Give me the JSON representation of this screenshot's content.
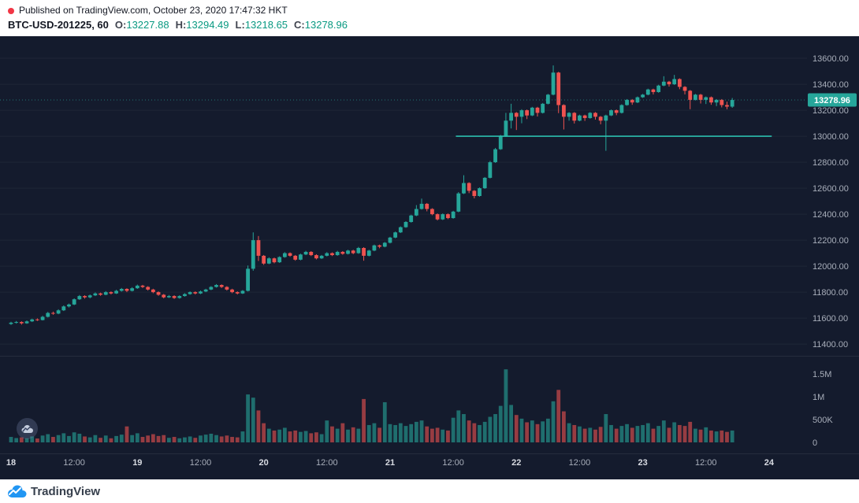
{
  "header": {
    "published_line": "Published on TradingView.com, October 23, 2020 17:47:32 HKT",
    "symbol_title": "BTC-USD-201225, 60",
    "ohlc": {
      "o_label": "O:",
      "o": "13227.88",
      "h_label": "H:",
      "h": "13294.49",
      "l_label": "L:",
      "l": "13218.65",
      "c_label": "C:",
      "c": "13278.96"
    }
  },
  "footer": {
    "brand": "TradingView"
  },
  "colors": {
    "bg": "#141b2d",
    "up": "#26a69a",
    "down": "#ef5350",
    "vol_up": "rgba(38,166,154,0.60)",
    "vol_down": "rgba(239,83,80,0.60)",
    "trendline": "#2cbfae",
    "price_label_bg": "#26a69a",
    "axis_text": "#a8aeba",
    "header_value_green": "#089981",
    "publish_dot_red": "#f23645"
  },
  "chart_data": {
    "type": "candlestick",
    "symbol": "BTC-USD-201225",
    "interval_minutes": 60,
    "grid": "subtle-horizontal",
    "legend_position": "none",
    "price_axis": {
      "min": 11310,
      "max": 13770,
      "last_price": 13278.96,
      "last_price_label": "13278.96",
      "ticks": [
        [
          13600,
          "13600.00"
        ],
        [
          13400,
          "13400.00"
        ],
        [
          13200,
          "13200.00"
        ],
        [
          13000,
          "13000.00"
        ],
        [
          12800,
          "12800.00"
        ],
        [
          12600,
          "12600.00"
        ],
        [
          12400,
          "12400.00"
        ],
        [
          12200,
          "12200.00"
        ],
        [
          12000,
          "12000.00"
        ],
        [
          11800,
          "11800.00"
        ],
        [
          11600,
          "11600.00"
        ],
        [
          11400,
          "11400.00"
        ]
      ]
    },
    "volume_axis": {
      "ticks": [
        [
          1500,
          "1.5M"
        ],
        [
          1000,
          "1M"
        ],
        [
          500,
          "500K"
        ],
        [
          0,
          "0"
        ]
      ],
      "units": "thousands"
    },
    "time_ticks": [
      [
        0,
        "18",
        true
      ],
      [
        12,
        "12:00",
        false
      ],
      [
        24,
        "19",
        true
      ],
      [
        36,
        "12:00",
        false
      ],
      [
        48,
        "20",
        true
      ],
      [
        60,
        "12:00",
        false
      ],
      [
        72,
        "21",
        true
      ],
      [
        84,
        "12:00",
        false
      ],
      [
        96,
        "22",
        true
      ],
      [
        108,
        "12:00",
        false
      ],
      [
        120,
        "23",
        true
      ],
      [
        132,
        "12:00",
        false
      ],
      [
        144,
        "24",
        true
      ]
    ],
    "trendline": {
      "price": 13000,
      "from_index": 84.5,
      "to_index": 144.5
    },
    "candles_format": [
      "open",
      "high",
      "low",
      "close",
      "volume_k"
    ],
    "candles": [
      [
        11555,
        11572,
        11548,
        11565,
        120
      ],
      [
        11565,
        11578,
        11558,
        11570,
        95
      ],
      [
        11570,
        11576,
        11550,
        11560,
        110
      ],
      [
        11560,
        11582,
        11556,
        11575,
        90
      ],
      [
        11575,
        11596,
        11570,
        11590,
        130
      ],
      [
        11590,
        11598,
        11578,
        11585,
        85
      ],
      [
        11585,
        11618,
        11582,
        11610,
        150
      ],
      [
        11610,
        11648,
        11605,
        11640,
        180
      ],
      [
        11640,
        11650,
        11626,
        11635,
        120
      ],
      [
        11635,
        11668,
        11630,
        11660,
        160
      ],
      [
        11660,
        11698,
        11655,
        11690,
        200
      ],
      [
        11690,
        11712,
        11682,
        11705,
        140
      ],
      [
        11705,
        11752,
        11700,
        11745,
        220
      ],
      [
        11745,
        11778,
        11740,
        11770,
        190
      ],
      [
        11770,
        11776,
        11750,
        11760,
        130
      ],
      [
        11760,
        11782,
        11752,
        11775,
        110
      ],
      [
        11775,
        11798,
        11770,
        11790,
        160
      ],
      [
        11790,
        11796,
        11772,
        11780,
        100
      ],
      [
        11780,
        11808,
        11776,
        11800,
        150
      ],
      [
        11800,
        11806,
        11782,
        11790,
        90
      ],
      [
        11790,
        11818,
        11786,
        11810,
        140
      ],
      [
        11810,
        11832,
        11804,
        11825,
        170
      ],
      [
        11825,
        11830,
        11800,
        11810,
        350
      ],
      [
        11810,
        11838,
        11805,
        11830,
        160
      ],
      [
        11830,
        11858,
        11825,
        11850,
        200
      ],
      [
        11850,
        11856,
        11832,
        11840,
        120
      ],
      [
        11840,
        11846,
        11812,
        11820,
        150
      ],
      [
        11820,
        11826,
        11792,
        11800,
        180
      ],
      [
        11800,
        11806,
        11772,
        11780,
        140
      ],
      [
        11780,
        11786,
        11752,
        11760,
        160
      ],
      [
        11760,
        11778,
        11755,
        11770,
        100
      ],
      [
        11770,
        11776,
        11748,
        11755,
        120
      ],
      [
        11755,
        11776,
        11750,
        11770,
        90
      ],
      [
        11770,
        11792,
        11765,
        11785,
        110
      ],
      [
        11785,
        11806,
        11780,
        11800,
        130
      ],
      [
        11800,
        11806,
        11782,
        11790,
        100
      ],
      [
        11790,
        11812,
        11785,
        11805,
        150
      ],
      [
        11805,
        11826,
        11800,
        11820,
        170
      ],
      [
        11820,
        11846,
        11815,
        11840,
        190
      ],
      [
        11840,
        11862,
        11835,
        11855,
        160
      ],
      [
        11855,
        11860,
        11832,
        11840,
        130
      ],
      [
        11840,
        11846,
        11812,
        11820,
        150
      ],
      [
        11820,
        11826,
        11792,
        11800,
        120
      ],
      [
        11800,
        11806,
        11782,
        11790,
        110
      ],
      [
        11790,
        11816,
        11786,
        11810,
        240
      ],
      [
        11810,
        12005,
        11805,
        11980,
        1050
      ],
      [
        11980,
        12260,
        11965,
        12200,
        980
      ],
      [
        12200,
        12232,
        12040,
        12080,
        700
      ],
      [
        12080,
        12086,
        12010,
        12020,
        420
      ],
      [
        12020,
        12068,
        12015,
        12060,
        300
      ],
      [
        12060,
        12066,
        12022,
        12030,
        260
      ],
      [
        12030,
        12076,
        12025,
        12070,
        280
      ],
      [
        12070,
        12108,
        12065,
        12100,
        320
      ],
      [
        12100,
        12106,
        12072,
        12080,
        240
      ],
      [
        12080,
        12086,
        12042,
        12050,
        260
      ],
      [
        12050,
        12096,
        12045,
        12090,
        230
      ],
      [
        12090,
        12118,
        12085,
        12110,
        250
      ],
      [
        12110,
        12116,
        12078,
        12085,
        200
      ],
      [
        12085,
        12092,
        12052,
        12060,
        220
      ],
      [
        12060,
        12086,
        12055,
        12080,
        180
      ],
      [
        12080,
        12108,
        12075,
        12100,
        480
      ],
      [
        12100,
        12106,
        12078,
        12085,
        350
      ],
      [
        12085,
        12118,
        12080,
        12110,
        300
      ],
      [
        12110,
        12116,
        12088,
        12095,
        420
      ],
      [
        12095,
        12126,
        12090,
        12120,
        280
      ],
      [
        12120,
        12126,
        12092,
        12100,
        330
      ],
      [
        12100,
        12148,
        12095,
        12140,
        300
      ],
      [
        12140,
        12146,
        12042,
        12080,
        950
      ],
      [
        12080,
        12126,
        12075,
        12120,
        380
      ],
      [
        12120,
        12166,
        12115,
        12160,
        420
      ],
      [
        12160,
        12166,
        12138,
        12150,
        320
      ],
      [
        12150,
        12186,
        12145,
        12180,
        880
      ],
      [
        12180,
        12226,
        12175,
        12220,
        400
      ],
      [
        12220,
        12266,
        12215,
        12260,
        380
      ],
      [
        12260,
        12306,
        12255,
        12300,
        420
      ],
      [
        12300,
        12346,
        12295,
        12340,
        360
      ],
      [
        12340,
        12396,
        12335,
        12390,
        400
      ],
      [
        12390,
        12470,
        12385,
        12440,
        450
      ],
      [
        12440,
        12520,
        12435,
        12480,
        480
      ],
      [
        12480,
        12486,
        12422,
        12440,
        350
      ],
      [
        12440,
        12446,
        12392,
        12400,
        300
      ],
      [
        12400,
        12406,
        12352,
        12360,
        320
      ],
      [
        12360,
        12406,
        12355,
        12400,
        280
      ],
      [
        12400,
        12406,
        12362,
        12370,
        260
      ],
      [
        12370,
        12426,
        12365,
        12420,
        540
      ],
      [
        12420,
        12570,
        12415,
        12560,
        700
      ],
      [
        12560,
        12700,
        12555,
        12640,
        620
      ],
      [
        12640,
        12646,
        12562,
        12580,
        480
      ],
      [
        12580,
        12586,
        12522,
        12540,
        420
      ],
      [
        12540,
        12606,
        12535,
        12600,
        380
      ],
      [
        12600,
        12686,
        12595,
        12680,
        450
      ],
      [
        12680,
        12810,
        12675,
        12800,
        560
      ],
      [
        12800,
        12910,
        12795,
        12900,
        620
      ],
      [
        12900,
        13010,
        12895,
        13000,
        800
      ],
      [
        13000,
        13180,
        12995,
        13120,
        1600
      ],
      [
        13120,
        13250,
        13060,
        13180,
        820
      ],
      [
        13180,
        13186,
        13048,
        13150,
        600
      ],
      [
        13150,
        13208,
        13100,
        13200,
        520
      ],
      [
        13200,
        13206,
        13132,
        13160,
        440
      ],
      [
        13160,
        13226,
        13155,
        13220,
        480
      ],
      [
        13220,
        13226,
        13152,
        13180,
        400
      ],
      [
        13180,
        13256,
        13175,
        13250,
        460
      ],
      [
        13250,
        13326,
        13245,
        13320,
        520
      ],
      [
        13320,
        13545,
        13315,
        13490,
        900
      ],
      [
        13490,
        13496,
        13178,
        13240,
        1150
      ],
      [
        13240,
        13246,
        13052,
        13150,
        680
      ],
      [
        13150,
        13186,
        13120,
        13180,
        420
      ],
      [
        13180,
        13186,
        13098,
        13120,
        380
      ],
      [
        13120,
        13166,
        13115,
        13160,
        350
      ],
      [
        13160,
        13166,
        13118,
        13140,
        300
      ],
      [
        13140,
        13186,
        13135,
        13180,
        320
      ],
      [
        13180,
        13186,
        13128,
        13150,
        280
      ],
      [
        13150,
        13156,
        13092,
        13120,
        340
      ],
      [
        13120,
        13166,
        12888,
        13160,
        620
      ],
      [
        13160,
        13206,
        13155,
        13200,
        380
      ],
      [
        13200,
        13206,
        13162,
        13180,
        300
      ],
      [
        13180,
        13246,
        13175,
        13240,
        360
      ],
      [
        13240,
        13286,
        13235,
        13280,
        400
      ],
      [
        13280,
        13286,
        13242,
        13260,
        320
      ],
      [
        13260,
        13306,
        13255,
        13300,
        360
      ],
      [
        13300,
        13326,
        13295,
        13320,
        380
      ],
      [
        13320,
        13366,
        13315,
        13360,
        420
      ],
      [
        13360,
        13366,
        13322,
        13340,
        300
      ],
      [
        13340,
        13396,
        13335,
        13390,
        360
      ],
      [
        13390,
        13462,
        13385,
        13420,
        480
      ],
      [
        13420,
        13426,
        13382,
        13400,
        320
      ],
      [
        13400,
        13472,
        13395,
        13440,
        440
      ],
      [
        13440,
        13446,
        13362,
        13380,
        380
      ],
      [
        13380,
        13386,
        13322,
        13350,
        360
      ],
      [
        13350,
        13356,
        13208,
        13280,
        450
      ],
      [
        13280,
        13326,
        13275,
        13320,
        300
      ],
      [
        13320,
        13326,
        13252,
        13280,
        280
      ],
      [
        13280,
        13306,
        13248,
        13300,
        330
      ],
      [
        13300,
        13306,
        13242,
        13260,
        260
      ],
      [
        13260,
        13286,
        13232,
        13280,
        240
      ],
      [
        13280,
        13286,
        13222,
        13240,
        260
      ],
      [
        13240,
        13266,
        13208,
        13228,
        230
      ],
      [
        13227.88,
        13294.49,
        13218.65,
        13278.96,
        260
      ]
    ]
  }
}
